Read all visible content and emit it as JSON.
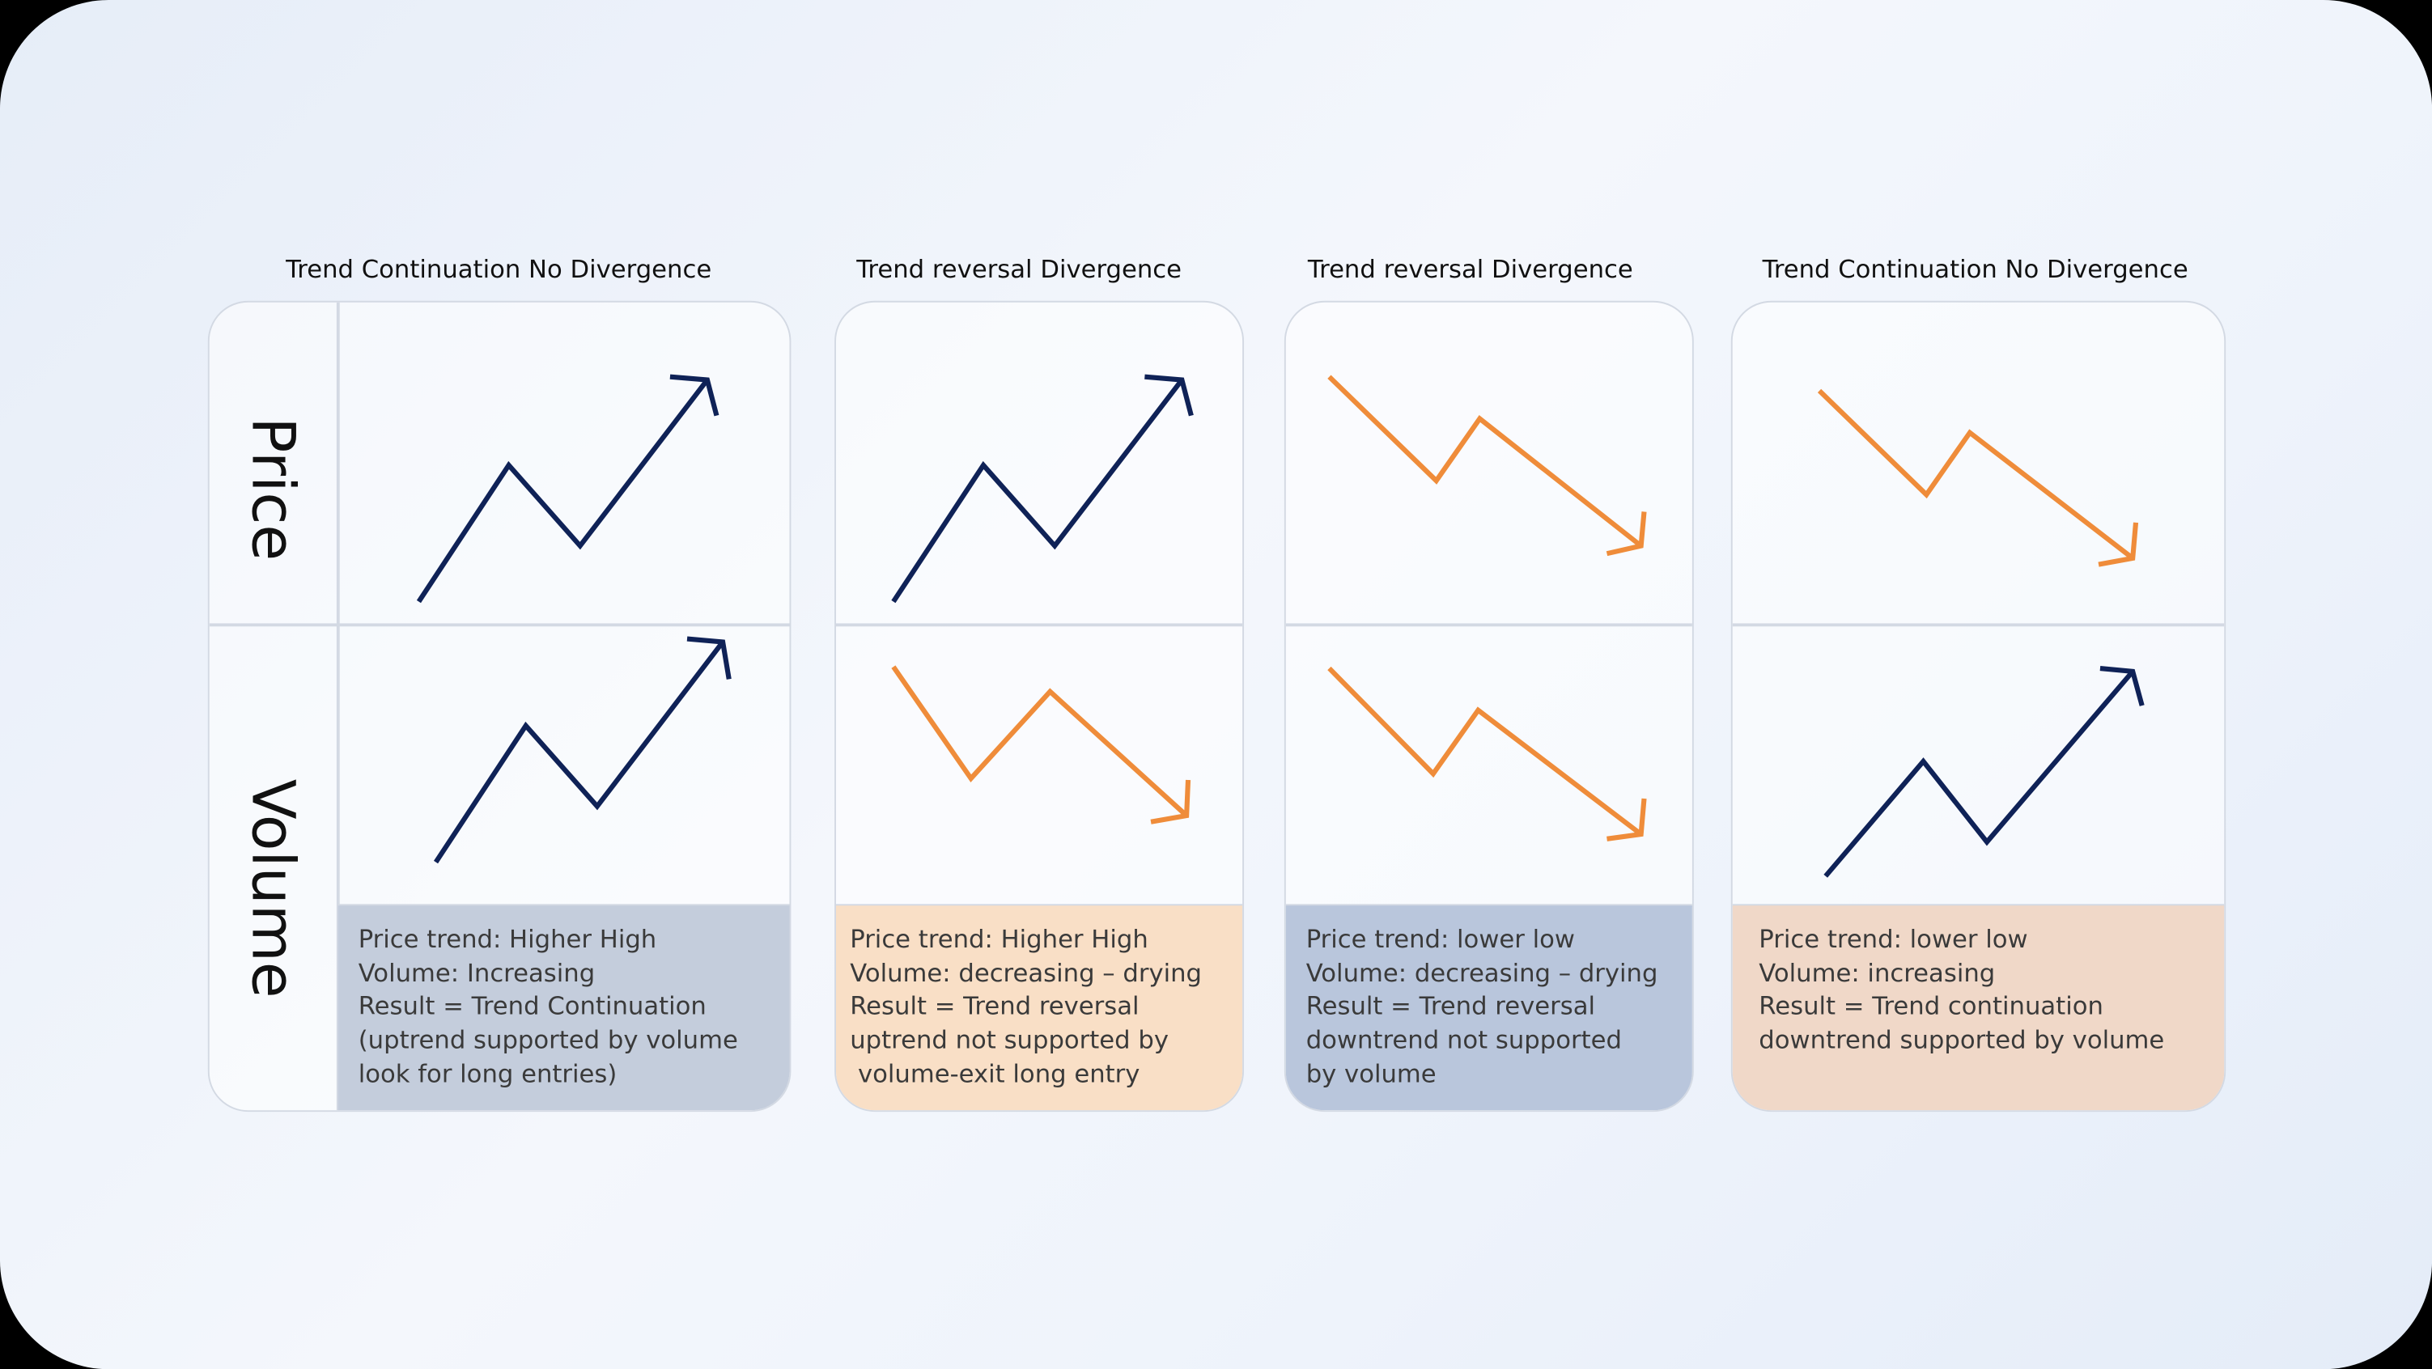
{
  "row_labels": {
    "price": "Price",
    "volume": "Volume"
  },
  "colors": {
    "up": "#0f2257",
    "down": "#ef8c3a",
    "blue_box": "#c4cddc",
    "orange_box": "#f9dfc6",
    "blue_box_2": "#b9c6dc",
    "peach_box": "#f0d8c8"
  },
  "cards": [
    {
      "title": "Trend Continuation No Divergence",
      "price_trend": "up",
      "volume_trend": "up",
      "description": "Price trend: Higher High\nVolume: Increasing\nResult = Trend Continuation\n(uptrend supported by volume\nlook for long entries)"
    },
    {
      "title": "Trend reversal Divergence",
      "price_trend": "up",
      "volume_trend": "down",
      "description": "Price trend: Higher High\nVolume: decreasing – drying\nResult = Trend reversal\nuptrend not supported by\n volume-exit long entry"
    },
    {
      "title": "Trend reversal Divergence",
      "price_trend": "down",
      "volume_trend": "down",
      "description": "Price trend: lower low\nVolume: decreasing – drying\nResult = Trend reversal\ndowntrend not supported\nby volume"
    },
    {
      "title": "Trend Continuation No Divergence",
      "price_trend": "down",
      "volume_trend": "up",
      "description": "Price trend: lower low\nVolume: increasing\nResult = Trend continuation\ndowntrend supported by volume"
    }
  ]
}
